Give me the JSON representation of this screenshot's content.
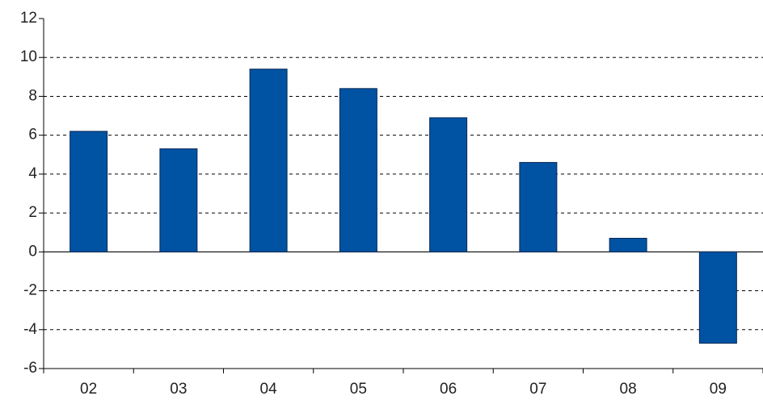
{
  "chart_data": {
    "type": "bar",
    "categories": [
      "02",
      "03",
      "04",
      "05",
      "06",
      "07",
      "08",
      "09"
    ],
    "values": [
      6.2,
      5.3,
      9.4,
      8.4,
      6.9,
      4.6,
      0.7,
      -4.7
    ],
    "color": "#0052a3",
    "ylim": [
      -6,
      12
    ],
    "yticks": [
      -6,
      -4,
      -2,
      0,
      2,
      4,
      6,
      8,
      10,
      12
    ],
    "grid": true
  }
}
